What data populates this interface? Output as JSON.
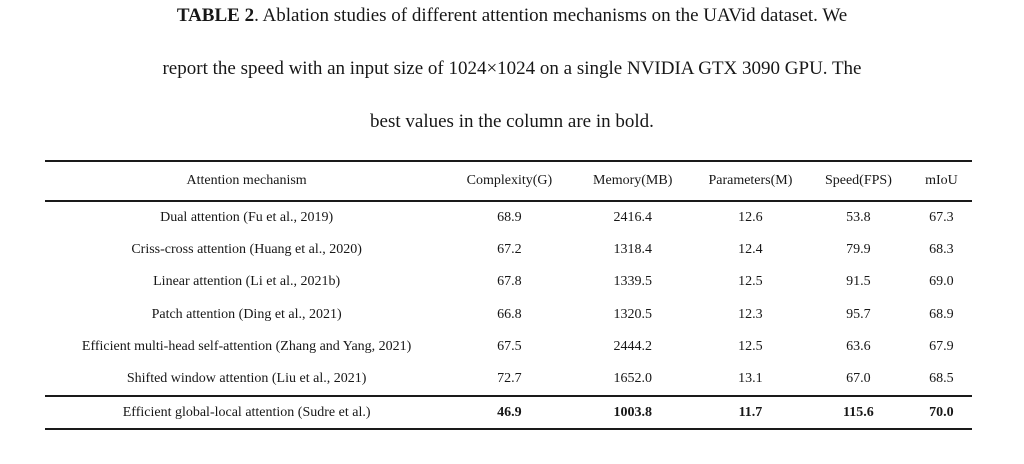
{
  "caption": {
    "label": "TABLE 2",
    "line1_rest": ". Ablation studies of different attention mechanisms on the UAVid dataset. We",
    "line2": "report the speed with an input size of 1024×1024 on a single NVIDIA GTX 3090 GPU. The",
    "line3": "best values in the column are in bold."
  },
  "table": {
    "columns": [
      "Attention mechanism",
      "Complexity(G)",
      "Memory(MB)",
      "Parameters(M)",
      "Speed(FPS)",
      "mIoU"
    ],
    "rows": [
      {
        "cells": [
          "Dual attention (Fu et al., 2019)",
          "68.9",
          "2416.4",
          "12.6",
          "53.8",
          "67.3"
        ],
        "highlight": false
      },
      {
        "cells": [
          "Criss-cross attention (Huang et al., 2020)",
          "67.2",
          "1318.4",
          "12.4",
          "79.9",
          "68.3"
        ],
        "highlight": false
      },
      {
        "cells": [
          "Linear attention (Li et al., 2021b)",
          "67.8",
          "1339.5",
          "12.5",
          "91.5",
          "69.0"
        ],
        "highlight": false
      },
      {
        "cells": [
          "Patch attention (Ding et al., 2021)",
          "66.8",
          "1320.5",
          "12.3",
          "95.7",
          "68.9"
        ],
        "highlight": false
      },
      {
        "cells": [
          "Efficient multi-head self-attention (Zhang and Yang, 2021)",
          "67.5",
          "2444.2",
          "12.5",
          "63.6",
          "67.9"
        ],
        "highlight": false
      },
      {
        "cells": [
          "Shifted window attention (Liu et al., 2021)",
          "72.7",
          "1652.0",
          "13.1",
          "67.0",
          "68.5"
        ],
        "highlight": false
      },
      {
        "cells": [
          "Efficient global-local attention (Sudre et al.)",
          "46.9",
          "1003.8",
          "11.7",
          "115.6",
          "70.0"
        ],
        "highlight": true
      }
    ]
  },
  "colors": {
    "text": "#171717",
    "rule": "#1a1a1a",
    "background": "#ffffff"
  }
}
